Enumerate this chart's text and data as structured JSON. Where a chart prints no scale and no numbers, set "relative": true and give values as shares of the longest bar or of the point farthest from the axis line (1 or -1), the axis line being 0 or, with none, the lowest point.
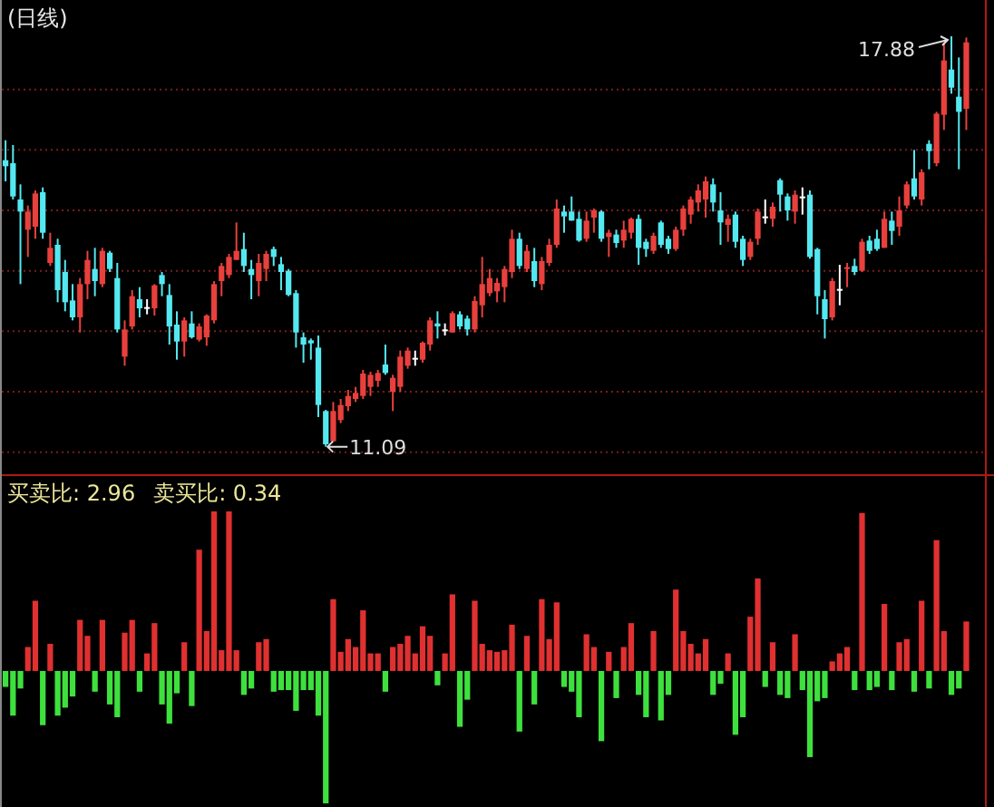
{
  "chart_data": [
    {
      "type": "candlestick",
      "title": "(日线)",
      "categories": [
        null,
        null,
        null,
        null,
        null,
        null,
        null,
        null,
        null,
        null,
        null,
        null,
        null,
        null,
        null,
        null,
        null,
        null,
        null,
        null,
        null,
        null,
        null,
        null,
        null,
        null,
        null,
        null,
        null,
        null,
        null,
        null,
        null,
        null,
        null,
        null,
        null,
        null,
        null,
        null,
        null,
        null,
        null,
        null,
        null,
        null,
        null,
        null,
        null,
        null,
        null,
        null,
        null,
        null,
        null,
        null,
        null,
        null,
        null,
        null,
        null,
        null,
        null,
        null,
        null,
        null,
        null,
        null,
        null,
        null,
        null,
        null,
        null,
        null,
        null,
        null,
        null,
        null,
        null,
        null,
        null,
        null,
        null,
        null,
        null,
        null,
        null,
        null,
        null,
        null,
        null,
        null,
        null,
        null,
        null,
        null,
        null,
        null,
        null,
        null,
        null,
        null,
        null,
        null,
        null,
        null,
        null,
        null,
        null,
        null,
        null,
        null,
        null,
        null,
        null,
        null,
        null,
        null,
        null,
        null,
        null,
        null,
        null,
        null,
        null,
        null,
        null,
        null,
        null,
        null
      ],
      "ohlc": [
        [
          15.83,
          16.16,
          15.48,
          15.73
        ],
        [
          15.78,
          16.08,
          15.18,
          15.23
        ],
        [
          15.18,
          15.43,
          13.78,
          14.98
        ],
        [
          14.68,
          15.08,
          14.23,
          14.98
        ],
        [
          14.73,
          15.33,
          14.53,
          15.28
        ],
        [
          15.3,
          15.38,
          14.53,
          14.63
        ],
        [
          14.13,
          14.63,
          14.08,
          14.38
        ],
        [
          14.43,
          14.53,
          13.48,
          13.68
        ],
        [
          13.98,
          14.18,
          13.33,
          13.48
        ],
        [
          13.51,
          13.78,
          13.18,
          13.23
        ],
        [
          13.23,
          13.88,
          12.98,
          13.78
        ],
        [
          13.78,
          14.33,
          13.53,
          14.18
        ],
        [
          14.03,
          14.38,
          13.58,
          13.83
        ],
        [
          13.78,
          14.38,
          13.73,
          14.33
        ],
        [
          14.3,
          14.33,
          13.98,
          14.03
        ],
        [
          13.88,
          14.13,
          12.98,
          13.03
        ],
        [
          12.58,
          13.18,
          12.43,
          13.03
        ],
        [
          13.08,
          13.68,
          13.03,
          13.58
        ],
        [
          13.53,
          13.73,
          13.23,
          13.38
        ],
        [
          13.4,
          13.53,
          13.28,
          13.4
        ],
        [
          13.38,
          13.78,
          13.26,
          13.76
        ],
        [
          13.93,
          13.98,
          13.58,
          13.78
        ],
        [
          13.6,
          13.78,
          12.78,
          13.08
        ],
        [
          13.11,
          13.33,
          12.53,
          12.83
        ],
        [
          12.83,
          13.23,
          12.58,
          13.18
        ],
        [
          13.13,
          13.33,
          12.88,
          12.9
        ],
        [
          12.86,
          13.13,
          12.83,
          13.08
        ],
        [
          12.9,
          13.28,
          12.76,
          13.26
        ],
        [
          13.18,
          13.83,
          13.13,
          13.78
        ],
        [
          13.83,
          14.13,
          13.58,
          14.08
        ],
        [
          13.93,
          14.28,
          13.88,
          14.23
        ],
        [
          14.18,
          14.8,
          14.18,
          14.33
        ],
        [
          14.36,
          14.63,
          13.98,
          14.08
        ],
        [
          14.03,
          14.18,
          13.53,
          13.93
        ],
        [
          13.83,
          14.28,
          13.58,
          14.13
        ],
        [
          14.03,
          14.33,
          13.83,
          14.28
        ],
        [
          14.36,
          14.4,
          14.08,
          14.23
        ],
        [
          14.11,
          14.23,
          13.68,
          13.98
        ],
        [
          14.0,
          14.03,
          13.58,
          13.6
        ],
        [
          13.63,
          13.68,
          12.73,
          12.98
        ],
        [
          12.9,
          12.98,
          12.48,
          12.78
        ],
        [
          12.85,
          12.88,
          12.53,
          12.8
        ],
        [
          12.73,
          12.93,
          11.58,
          11.78
        ],
        [
          11.68,
          11.7,
          11.09,
          11.13
        ],
        [
          11.18,
          11.83,
          11.18,
          11.68
        ],
        [
          11.53,
          11.88,
          11.48,
          11.78
        ],
        [
          11.76,
          12.03,
          11.68,
          11.93
        ],
        [
          11.88,
          12.08,
          11.83,
          11.98
        ],
        [
          11.93,
          12.36,
          11.88,
          12.3
        ],
        [
          12.08,
          12.33,
          11.93,
          12.28
        ],
        [
          12.18,
          12.36,
          12.08,
          12.31
        ],
        [
          12.45,
          12.78,
          12.28,
          12.31
        ],
        [
          12.0,
          12.28,
          11.68,
          12.23
        ],
        [
          12.08,
          12.68,
          12.0,
          12.58
        ],
        [
          12.43,
          12.73,
          12.38,
          12.68
        ],
        [
          12.56,
          12.68,
          12.43,
          12.56
        ],
        [
          12.53,
          12.83,
          12.48,
          12.81
        ],
        [
          12.78,
          13.23,
          12.68,
          13.18
        ],
        [
          13.13,
          13.33,
          12.88,
          13.08
        ],
        [
          13.03,
          13.13,
          12.93,
          13.03
        ],
        [
          12.98,
          13.33,
          12.98,
          13.3
        ],
        [
          13.28,
          13.33,
          13.03,
          13.08
        ],
        [
          13.21,
          13.26,
          12.93,
          13.03
        ],
        [
          13.03,
          13.58,
          12.98,
          13.5
        ],
        [
          13.43,
          14.23,
          13.23,
          13.78
        ],
        [
          13.63,
          14.03,
          13.58,
          13.88
        ],
        [
          13.66,
          13.88,
          13.48,
          13.8
        ],
        [
          13.73,
          14.08,
          13.48,
          14.03
        ],
        [
          13.98,
          14.68,
          13.88,
          14.53
        ],
        [
          14.53,
          14.63,
          14.03,
          14.08
        ],
        [
          14.03,
          14.43,
          13.98,
          14.33
        ],
        [
          14.16,
          14.38,
          13.73,
          13.83
        ],
        [
          13.78,
          14.23,
          13.68,
          14.16
        ],
        [
          14.13,
          14.53,
          14.08,
          14.43
        ],
        [
          14.43,
          15.18,
          14.38,
          15.03
        ],
        [
          14.98,
          15.08,
          14.63,
          14.9
        ],
        [
          14.98,
          15.23,
          14.83,
          14.83
        ],
        [
          14.86,
          14.98,
          14.48,
          14.5
        ],
        [
          14.53,
          14.98,
          14.48,
          14.83
        ],
        [
          14.88,
          15.03,
          14.63,
          15.0
        ],
        [
          14.98,
          15.0,
          14.48,
          14.53
        ],
        [
          14.56,
          14.68,
          14.23,
          14.63
        ],
        [
          14.6,
          14.68,
          14.38,
          14.46
        ],
        [
          14.5,
          14.83,
          14.38,
          14.68
        ],
        [
          14.63,
          14.88,
          14.53,
          14.86
        ],
        [
          14.86,
          14.93,
          14.1,
          14.38
        ],
        [
          14.48,
          14.53,
          14.23,
          14.36
        ],
        [
          14.33,
          14.63,
          14.28,
          14.58
        ],
        [
          14.8,
          14.83,
          14.38,
          14.43
        ],
        [
          14.53,
          14.58,
          14.28,
          14.36
        ],
        [
          14.36,
          14.73,
          14.33,
          14.68
        ],
        [
          14.68,
          15.08,
          14.58,
          15.03
        ],
        [
          14.93,
          15.23,
          14.78,
          15.18
        ],
        [
          15.13,
          15.43,
          14.98,
          15.33
        ],
        [
          15.18,
          15.56,
          14.88,
          15.48
        ],
        [
          15.43,
          15.53,
          14.98,
          15.13
        ],
        [
          15.0,
          15.3,
          14.43,
          14.8
        ],
        [
          14.76,
          14.93,
          14.48,
          14.86
        ],
        [
          14.93,
          14.98,
          14.38,
          14.48
        ],
        [
          14.53,
          14.58,
          14.08,
          14.18
        ],
        [
          14.23,
          14.53,
          14.18,
          14.48
        ],
        [
          14.53,
          15.03,
          14.43,
          14.98
        ],
        [
          14.9,
          15.18,
          14.78,
          14.9
        ],
        [
          14.86,
          15.13,
          14.73,
          15.06
        ],
        [
          15.5,
          15.53,
          14.98,
          15.26
        ],
        [
          15.23,
          15.28,
          14.83,
          15.0
        ],
        [
          14.98,
          15.33,
          14.78,
          15.26
        ],
        [
          15.23,
          15.38,
          14.93,
          15.23
        ],
        [
          15.26,
          15.33,
          14.2,
          14.23
        ],
        [
          14.36,
          14.38,
          13.28,
          13.58
        ],
        [
          13.53,
          13.68,
          12.88,
          13.2
        ],
        [
          13.23,
          13.88,
          13.18,
          13.83
        ],
        [
          13.7,
          14.1,
          13.43,
          13.7
        ],
        [
          14.03,
          14.13,
          13.73,
          14.06
        ],
        [
          14.08,
          14.2,
          13.93,
          13.98
        ],
        [
          14.0,
          14.53,
          13.98,
          14.48
        ],
        [
          14.5,
          14.58,
          14.28,
          14.33
        ],
        [
          14.53,
          14.68,
          14.33,
          14.36
        ],
        [
          14.38,
          14.98,
          14.38,
          14.86
        ],
        [
          14.83,
          14.98,
          14.43,
          14.66
        ],
        [
          14.73,
          15.23,
          14.58,
          15.0
        ],
        [
          15.08,
          15.48,
          15.03,
          15.43
        ],
        [
          15.53,
          16.0,
          15.18,
          15.23
        ],
        [
          15.18,
          15.68,
          15.08,
          15.63
        ],
        [
          16.1,
          16.16,
          15.68,
          15.98
        ],
        [
          15.78,
          16.63,
          15.73,
          16.6
        ],
        [
          16.58,
          17.78,
          16.33,
          17.48
        ],
        [
          17.33,
          17.88,
          16.93,
          17.03
        ],
        [
          16.88,
          17.53,
          15.68,
          16.63
        ],
        [
          16.68,
          17.86,
          16.33,
          17.78
        ]
      ],
      "colors": [
        "#54e8f0",
        "#54e8f0",
        "#54e8f0",
        "#e8403c",
        "#e8403c",
        "#54e8f0",
        "#e8403c",
        "#54e8f0",
        "#54e8f0",
        "#54e8f0",
        "#e8403c",
        "#e8403c",
        "#54e8f0",
        "#e8403c",
        "#54e8f0",
        "#54e8f0",
        "#e8403c",
        "#e8403c",
        "#54e8f0",
        "#ffffff",
        "#e8403c",
        "#54e8f0",
        "#54e8f0",
        "#54e8f0",
        "#e8403c",
        "#54e8f0",
        "#e8403c",
        "#e8403c",
        "#e8403c",
        "#e8403c",
        "#e8403c",
        "#e8403c",
        "#54e8f0",
        "#54e8f0",
        "#e8403c",
        "#e8403c",
        "#54e8f0",
        "#54e8f0",
        "#54e8f0",
        "#54e8f0",
        "#54e8f0",
        "#54e8f0",
        "#54e8f0",
        "#54e8f0",
        "#e8403c",
        "#e8403c",
        "#e8403c",
        "#e8403c",
        "#e8403c",
        "#e8403c",
        "#e8403c",
        "#54e8f0",
        "#e8403c",
        "#e8403c",
        "#e8403c",
        "#ffffff",
        "#e8403c",
        "#e8403c",
        "#54e8f0",
        "#ffffff",
        "#e8403c",
        "#54e8f0",
        "#54e8f0",
        "#e8403c",
        "#e8403c",
        "#e8403c",
        "#e8403c",
        "#e8403c",
        "#e8403c",
        "#54e8f0",
        "#e8403c",
        "#54e8f0",
        "#e8403c",
        "#e8403c",
        "#e8403c",
        "#54e8f0",
        "#54e8f0",
        "#54e8f0",
        "#e8403c",
        "#e8403c",
        "#54e8f0",
        "#e8403c",
        "#54e8f0",
        "#e8403c",
        "#e8403c",
        "#54e8f0",
        "#54e8f0",
        "#e8403c",
        "#54e8f0",
        "#54e8f0",
        "#e8403c",
        "#e8403c",
        "#e8403c",
        "#e8403c",
        "#e8403c",
        "#54e8f0",
        "#54e8f0",
        "#e8403c",
        "#54e8f0",
        "#54e8f0",
        "#e8403c",
        "#e8403c",
        "#ffffff",
        "#e8403c",
        "#54e8f0",
        "#54e8f0",
        "#e8403c",
        "#ffffff",
        "#54e8f0",
        "#54e8f0",
        "#54e8f0",
        "#e8403c",
        "#ffffff",
        "#e8403c",
        "#54e8f0",
        "#e8403c",
        "#54e8f0",
        "#54e8f0",
        "#e8403c",
        "#54e8f0",
        "#e8403c",
        "#e8403c",
        "#54e8f0",
        "#e8403c",
        "#54e8f0",
        "#e8403c",
        "#e8403c",
        "#54e8f0",
        "#54e8f0",
        "#e8403c"
      ],
      "ylim": [
        10.62,
        18.48
      ],
      "yticks": [
        {
          "value": 11,
          "label": null
        },
        {
          "value": 12,
          "label": null
        },
        {
          "value": 13,
          "label": null
        },
        {
          "value": 14,
          "label": null
        },
        {
          "value": 15,
          "label": null
        },
        {
          "value": 16,
          "label": null
        },
        {
          "value": 17,
          "label": null
        }
      ],
      "grid": "y",
      "annotations": [
        "17.88",
        "11.09"
      ]
    },
    {
      "type": "bar",
      "relative": true,
      "title": "买卖比: 2.96",
      "subtitle": "卖买比: 0.34",
      "categories": [
        null,
        null,
        null,
        null,
        null,
        null,
        null,
        null,
        null,
        null,
        null,
        null,
        null,
        null,
        null,
        null,
        null,
        null,
        null,
        null,
        null,
        null,
        null,
        null,
        null,
        null,
        null,
        null,
        null,
        null,
        null,
        null,
        null,
        null,
        null,
        null,
        null,
        null,
        null,
        null,
        null,
        null,
        null,
        null,
        null,
        null,
        null,
        null,
        null,
        null,
        null,
        null,
        null,
        null,
        null,
        null,
        null,
        null,
        null,
        null,
        null,
        null,
        null,
        null,
        null,
        null,
        null,
        null,
        null,
        null,
        null,
        null,
        null,
        null,
        null,
        null,
        null,
        null,
        null,
        null,
        null,
        null,
        null,
        null,
        null,
        null,
        null,
        null,
        null,
        null,
        null,
        null,
        null,
        null,
        null,
        null,
        null,
        null,
        null,
        null,
        null,
        null,
        null,
        null,
        null,
        null,
        null,
        null,
        null,
        null,
        null,
        null,
        null,
        null,
        null,
        null,
        null,
        null,
        null,
        null,
        null,
        null,
        null,
        null,
        null,
        null,
        null,
        null,
        null,
        null
      ],
      "values": [
        -0.1,
        -0.28,
        -0.11,
        0.15,
        0.44,
        -0.34,
        0.17,
        -0.28,
        -0.23,
        -0.16,
        0.32,
        0.22,
        -0.13,
        0.32,
        -0.21,
        -0.29,
        0.24,
        0.32,
        -0.13,
        0.11,
        0.3,
        -0.21,
        -0.33,
        -0.14,
        0.18,
        -0.22,
        0.76,
        0.25,
        1.0,
        0.13,
        1.0,
        0.13,
        -0.15,
        -0.11,
        0.18,
        0.2,
        -0.13,
        -0.12,
        -0.12,
        -0.25,
        -0.12,
        -0.12,
        -0.28,
        -0.83,
        0.45,
        0.12,
        0.2,
        0.15,
        0.38,
        0.11,
        0.11,
        -0.13,
        0.15,
        0.17,
        0.22,
        0.11,
        0.28,
        0.22,
        -0.09,
        0.11,
        0.48,
        -0.35,
        -0.18,
        0.44,
        0.17,
        0.13,
        0.12,
        0.13,
        0.29,
        -0.38,
        0.22,
        -0.21,
        0.45,
        0.2,
        0.43,
        -0.1,
        -0.13,
        -0.29,
        0.23,
        0.15,
        -0.44,
        0.12,
        -0.17,
        0.15,
        0.3,
        -0.15,
        -0.29,
        0.25,
        -0.31,
        -0.15,
        0.51,
        0.25,
        0.17,
        0.11,
        0.2,
        -0.15,
        -0.08,
        0.11,
        -0.4,
        -0.29,
        0.34,
        0.58,
        -0.1,
        0.18,
        -0.15,
        -0.17,
        0.23,
        -0.12,
        -0.54,
        -0.19,
        -0.17,
        0.06,
        0.11,
        0.15,
        -0.12,
        0.99,
        -0.12,
        -0.1,
        0.42,
        -0.12,
        0.18,
        0.2,
        -0.13,
        0.44,
        -0.11,
        0.82,
        0.25,
        -0.15,
        -0.11,
        0.31
      ],
      "colors": [
        "#3ee03e",
        "#3ee03e",
        "#3ee03e",
        "#e03030",
        "#e03030",
        "#3ee03e",
        "#e03030",
        "#3ee03e",
        "#3ee03e",
        "#3ee03e",
        "#e03030",
        "#e03030",
        "#3ee03e",
        "#e03030",
        "#3ee03e",
        "#3ee03e",
        "#e03030",
        "#e03030",
        "#3ee03e",
        "#e03030",
        "#e03030",
        "#3ee03e",
        "#3ee03e",
        "#3ee03e",
        "#e03030",
        "#3ee03e",
        "#e03030",
        "#e03030",
        "#e03030",
        "#e03030",
        "#e03030",
        "#e03030",
        "#3ee03e",
        "#3ee03e",
        "#e03030",
        "#e03030",
        "#3ee03e",
        "#3ee03e",
        "#3ee03e",
        "#3ee03e",
        "#3ee03e",
        "#3ee03e",
        "#3ee03e",
        "#3ee03e",
        "#e03030",
        "#e03030",
        "#e03030",
        "#e03030",
        "#e03030",
        "#e03030",
        "#e03030",
        "#3ee03e",
        "#e03030",
        "#e03030",
        "#e03030",
        "#e03030",
        "#e03030",
        "#e03030",
        "#3ee03e",
        "#e03030",
        "#e03030",
        "#3ee03e",
        "#3ee03e",
        "#e03030",
        "#e03030",
        "#e03030",
        "#e03030",
        "#e03030",
        "#e03030",
        "#3ee03e",
        "#e03030",
        "#3ee03e",
        "#e03030",
        "#e03030",
        "#e03030",
        "#3ee03e",
        "#3ee03e",
        "#3ee03e",
        "#e03030",
        "#e03030",
        "#3ee03e",
        "#e03030",
        "#3ee03e",
        "#e03030",
        "#e03030",
        "#3ee03e",
        "#3ee03e",
        "#e03030",
        "#3ee03e",
        "#3ee03e",
        "#e03030",
        "#e03030",
        "#e03030",
        "#e03030",
        "#e03030",
        "#3ee03e",
        "#3ee03e",
        "#e03030",
        "#3ee03e",
        "#3ee03e",
        "#e03030",
        "#e03030",
        "#3ee03e",
        "#e03030",
        "#3ee03e",
        "#3ee03e",
        "#e03030",
        "#3ee03e",
        "#3ee03e",
        "#3ee03e",
        "#3ee03e",
        "#e03030",
        "#e03030",
        "#e03030",
        "#3ee03e",
        "#e03030",
        "#3ee03e",
        "#3ee03e",
        "#e03030",
        "#3ee03e",
        "#e03030",
        "#e03030",
        "#3ee03e",
        "#e03030",
        "#3ee03e",
        "#e03030",
        "#e03030",
        "#3ee03e",
        "#3ee03e",
        "#e03030"
      ]
    }
  ]
}
